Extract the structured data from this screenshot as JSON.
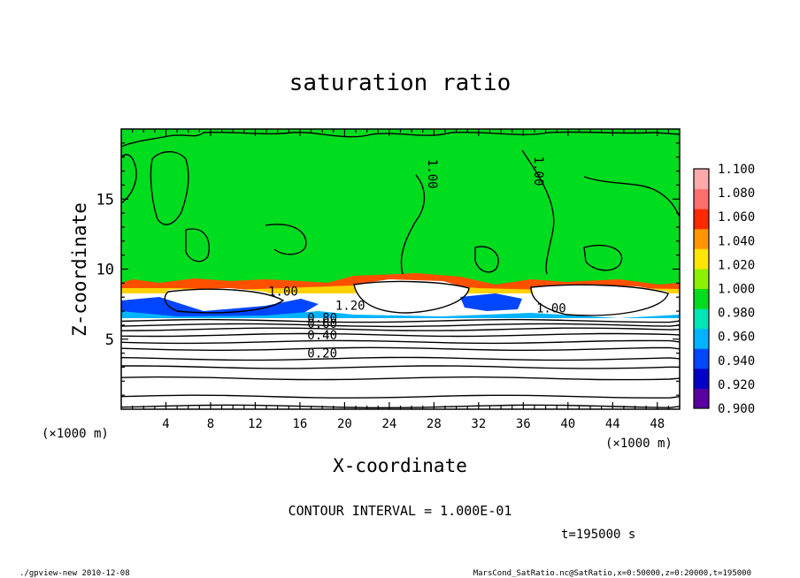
{
  "chart_data": {
    "type": "heatmap",
    "title": "saturation ratio",
    "xlabel": "X-coordinate",
    "ylabel": "Z-coordinate",
    "x_unit": "(×1000 m)",
    "y_unit": "(×1000 m)",
    "xlim": [
      0,
      50
    ],
    "ylim": [
      0,
      20
    ],
    "x_ticks": [
      "4",
      "8",
      "12",
      "16",
      "20",
      "24",
      "28",
      "32",
      "36",
      "40",
      "44",
      "48"
    ],
    "y_ticks": [
      "5",
      "10",
      "15"
    ],
    "colorbar": {
      "levels": [
        "0.900",
        "0.920",
        "0.940",
        "0.960",
        "0.980",
        "1.000",
        "1.020",
        "1.040",
        "1.060",
        "1.080",
        "1.100"
      ],
      "colors": [
        "#5a00a0",
        "#0000c8",
        "#0046ff",
        "#00b4ff",
        "#00e6b4",
        "#00dc1e",
        "#8cf000",
        "#ffe600",
        "#ff9600",
        "#ff2800",
        "#ff6e6e",
        "#ffaaaa"
      ]
    },
    "contour_labels": [
      {
        "text": "1.00",
        "x": 27.5,
        "z": 16.8
      },
      {
        "text": "1.00",
        "x": 37.0,
        "z": 17.0
      },
      {
        "text": "1.00",
        "x": 14.5,
        "z": 8.1
      },
      {
        "text": "1.20",
        "x": 20.5,
        "z": 7.1
      },
      {
        "text": "1.00",
        "x": 38.5,
        "z": 6.9
      },
      {
        "text": "0.80",
        "x": 18.0,
        "z": 6.2
      },
      {
        "text": "0.60",
        "x": 18.0,
        "z": 5.8
      },
      {
        "text": "0.40",
        "x": 18.0,
        "z": 5.0
      },
      {
        "text": "0.20",
        "x": 18.0,
        "z": 3.7
      }
    ],
    "subsaturated_contours_z": [
      0.2,
      0.9,
      2.2,
      3.0,
      3.6,
      4.3,
      4.8,
      5.3,
      5.7,
      6.0,
      6.3
    ],
    "contour_interval": "CONTOUR INTERVAL = 1.000E-01",
    "time_label": "t=195000 s",
    "footer_left": "./gpview-new  2010-12-08",
    "footer_right": "MarsCond_SatRatio.nc@SatRatio,x=0:50000,z=0:20000,t=195000"
  }
}
